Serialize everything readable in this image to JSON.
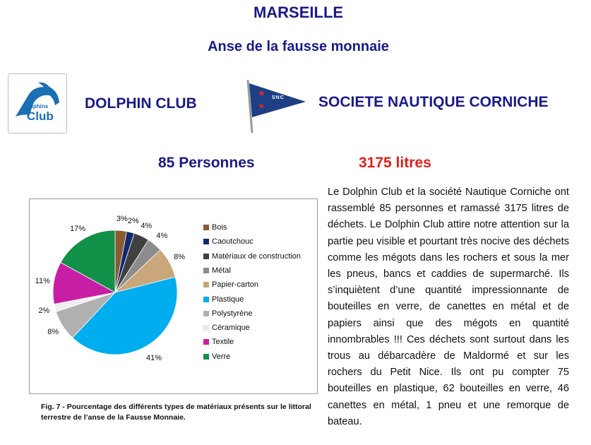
{
  "header": {
    "title": "MARSEILLE",
    "subtitle": "Anse de la fausse monnaie"
  },
  "orgs": {
    "dolphin_logo_text": [
      "Dolphins",
      "Club"
    ],
    "dolphin_name": "DOLPHIN CLUB",
    "snc_logo_text": "SNC",
    "snc_name": "SOCIETE NAUTIQUE CORNICHE"
  },
  "stats": {
    "persons": "85 Personnes",
    "litres": "3175 litres"
  },
  "chart_data": {
    "type": "pie",
    "start": "12 o'clock, clockwise",
    "legend_position": "right",
    "categories": [
      "Bois",
      "Caoutchouc",
      "Matériaux de construction",
      "Métal",
      "Papier-carton",
      "Plastique",
      "Polystyrène",
      "Céramique",
      "Textile",
      "Verre"
    ],
    "values": [
      3,
      2,
      4,
      4,
      8,
      41,
      8,
      2,
      11,
      17
    ],
    "labels": [
      "3%",
      "2%",
      "4%",
      "4%",
      "8%",
      "41%",
      "8%",
      "2%",
      "11%",
      "17%"
    ],
    "colors": [
      "#8a5a32",
      "#102a6e",
      "#404040",
      "#8c8c8c",
      "#c9a77a",
      "#00adef",
      "#b0b0b0",
      "#efefef",
      "#c81ea6",
      "#119148"
    ]
  },
  "caption": "Fig. 7 - Pourcentage des différents types de matériaux présents sur le littoral terrestre de l’anse de la Fausse Monnaie.",
  "paragraph": "Le Dolphin Club et la société Nautique Corniche ont rassemblé 85 personnes et ramassé 3175 litres de déchets. Le Dolphin Club attire notre attention sur la partie peu visible et pourtant très nocive des déchets comme les mégots dans les rochers et sous la mer les pneus, bancs et caddies de supermarché. Ils s’inquiètent d’une quantité impressionnante de bouteilles en verre, de canettes en métal et de papiers ainsi que des mégots en quantité innombrables !!! Ces déchets sont surtout dans les trous au débarcadère de Maldormé et sur les rochers du Petit Nice. Ils ont pu compter 75 bouteilles en plastique, 62 bouteilles en verre, 46 canettes en métal, 1 pneu et une remorque de bateau."
}
